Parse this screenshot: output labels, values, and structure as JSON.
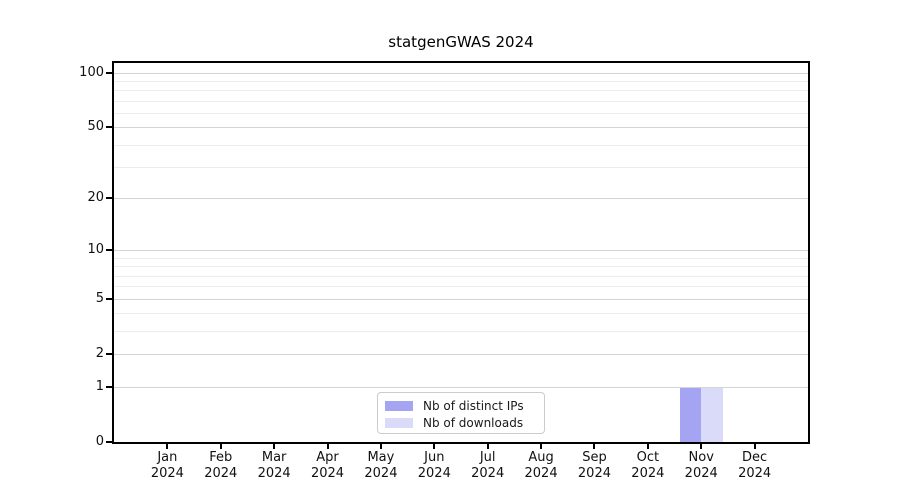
{
  "chart_data": {
    "type": "bar",
    "title": "statgenGWAS 2024",
    "categories": [
      {
        "month": "Jan",
        "year": "2024"
      },
      {
        "month": "Feb",
        "year": "2024"
      },
      {
        "month": "Mar",
        "year": "2024"
      },
      {
        "month": "Apr",
        "year": "2024"
      },
      {
        "month": "May",
        "year": "2024"
      },
      {
        "month": "Jun",
        "year": "2024"
      },
      {
        "month": "Jul",
        "year": "2024"
      },
      {
        "month": "Aug",
        "year": "2024"
      },
      {
        "month": "Sep",
        "year": "2024"
      },
      {
        "month": "Oct",
        "year": "2024"
      },
      {
        "month": "Nov",
        "year": "2024"
      },
      {
        "month": "Dec",
        "year": "2024"
      }
    ],
    "series": [
      {
        "name": "Nb of distinct IPs",
        "color": "#a4a4f2",
        "values": [
          0,
          0,
          0,
          0,
          0,
          0,
          0,
          0,
          0,
          0,
          1,
          0
        ]
      },
      {
        "name": "Nb of downloads",
        "color": "#dadaf9",
        "values": [
          0,
          0,
          0,
          0,
          0,
          0,
          0,
          0,
          0,
          0,
          1,
          0
        ]
      }
    ],
    "yscale": "log1p",
    "ylim": [
      0,
      113
    ],
    "y_major_ticks": [
      0,
      1,
      2,
      5,
      10,
      20,
      50,
      100
    ],
    "y_minor_gridlines": [
      3,
      4,
      6,
      7,
      8,
      9,
      30,
      40,
      60,
      70,
      80,
      90
    ],
    "grid": true,
    "legend_position": "bottom-center",
    "xlabel": "",
    "ylabel": ""
  },
  "colors": {
    "axis": "#000000",
    "grid_major": "#d4d4d4",
    "grid_minor": "#ededed",
    "bar_distinct_ips": "#a4a4f2",
    "bar_downloads": "#dadaf9"
  }
}
